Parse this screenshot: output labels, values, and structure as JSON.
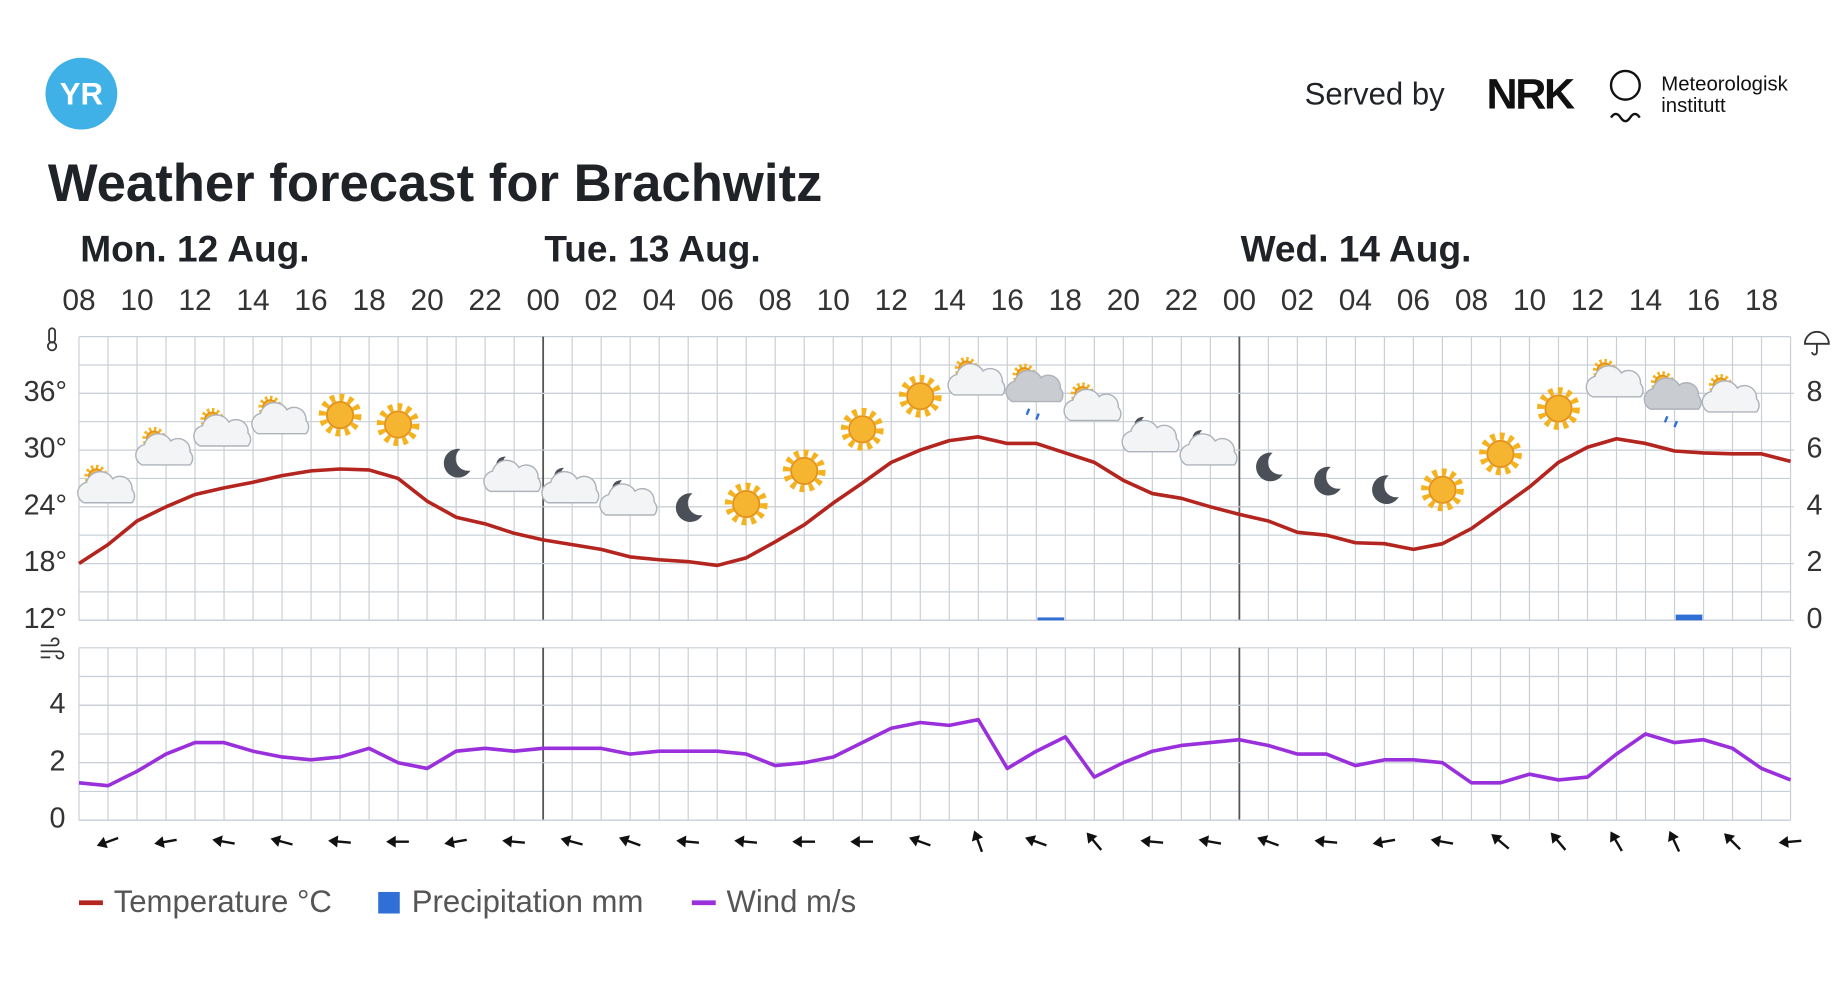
{
  "header": {
    "logo": "YR",
    "served_by": "Served by",
    "partner": "NRK",
    "institute": [
      "Meteorologisk",
      "institutt"
    ]
  },
  "chart_data": {
    "type": "line",
    "title": "Weather forecast for Brachwitz",
    "days": [
      "Mon. 12 Aug.",
      "Tue. 13 Aug.",
      "Wed. 14 Aug."
    ],
    "hour_labels": [
      "08",
      "10",
      "12",
      "14",
      "16",
      "18",
      "20",
      "22",
      "00",
      "02",
      "04",
      "06",
      "08",
      "10",
      "12",
      "14",
      "16",
      "18",
      "20",
      "22",
      "00",
      "02",
      "04",
      "06",
      "08",
      "10",
      "12",
      "14",
      "16",
      "18"
    ],
    "series": [
      {
        "name": "Temperature °C",
        "color": "#b3251e",
        "values": [
          18,
          20,
          22.5,
          24,
          25.3,
          26,
          26.6,
          27.3,
          27.8,
          28,
          27.9,
          27,
          24.6,
          22.9,
          22.2,
          21.2,
          20.5,
          20,
          19.5,
          18.7,
          18.4,
          18.2,
          17.8,
          18.6,
          20.3,
          22.1,
          24.4,
          26.5,
          28.7,
          30,
          31,
          31.4,
          30.7,
          30.7,
          29.7,
          28.7,
          26.8,
          25.4,
          24.9,
          24,
          23.2,
          22.5,
          21.3,
          21,
          20.2,
          20.1,
          19.5,
          20.1,
          21.7,
          23.9,
          26.1,
          28.7,
          30.3,
          31.2,
          30.7,
          29.9,
          29.7,
          29.6,
          29.6,
          28.8
        ]
      },
      {
        "name": "Precipitation mm",
        "type": "bar",
        "axis": "y2",
        "color": "#2f6fd6",
        "values": [
          0,
          0,
          0,
          0,
          0,
          0,
          0,
          0,
          0,
          0,
          0,
          0,
          0,
          0,
          0,
          0,
          0,
          0,
          0,
          0,
          0,
          0,
          0,
          0,
          0,
          0,
          0,
          0,
          0,
          0,
          0,
          0,
          0,
          0.1,
          0,
          0,
          0,
          0,
          0,
          0,
          0,
          0,
          0,
          0,
          0,
          0,
          0,
          0,
          0,
          0,
          0,
          0,
          0,
          0,
          0,
          0.2,
          0,
          0,
          0,
          0
        ]
      },
      {
        "name": "Wind m/s",
        "color": "#9a2fdc",
        "values": [
          1.3,
          1.2,
          1.7,
          2.3,
          2.7,
          2.7,
          2.4,
          2.2,
          2.1,
          2.2,
          2.5,
          2,
          1.8,
          2.4,
          2.5,
          2.4,
          2.5,
          2.5,
          2.5,
          2.3,
          2.4,
          2.4,
          2.4,
          2.3,
          1.9,
          2,
          2.2,
          2.7,
          3.2,
          3.4,
          3.3,
          3.5,
          1.8,
          2.4,
          2.9,
          1.5,
          2,
          2.4,
          2.6,
          2.7,
          2.8,
          2.6,
          2.3,
          2.3,
          1.9,
          2.1,
          2.1,
          2,
          1.3,
          1.3,
          1.6,
          1.4,
          1.5,
          2.3,
          3,
          2.7,
          2.8,
          2.5,
          1.8,
          1.4
        ]
      }
    ],
    "ylim": [
      12,
      42
    ],
    "yticks": [
      {
        "value": 12,
        "label": "12°"
      },
      {
        "value": 18,
        "label": "18°"
      },
      {
        "value": 24,
        "label": "24°"
      },
      {
        "value": 30,
        "label": "30°"
      },
      {
        "value": 36,
        "label": "36°"
      }
    ],
    "y2lim": [
      0,
      10
    ],
    "y2ticks": [
      0,
      2,
      4,
      6,
      8
    ],
    "wind_ylim": [
      0,
      6
    ],
    "wind_yticks": [
      0,
      2,
      4
    ],
    "wind_direction": [
      70,
      80,
      100,
      105,
      95,
      90,
      80,
      95,
      105,
      110,
      95,
      95,
      90,
      90,
      110,
      160,
      110,
      140,
      95,
      100,
      110,
      95,
      80,
      100,
      130,
      140,
      150,
      155,
      135,
      85
    ],
    "weather_symbols": [
      "partlycloudy_day",
      "partlycloudy_day",
      "partlycloudy_day",
      "partlycloudy_day",
      "clearsky_day",
      "clearsky_day",
      "clearsky_night",
      "partlycloudy_night",
      "partlycloudy_night",
      "partlycloudy_night",
      "clearsky_night",
      "clearsky_day",
      "clearsky_day",
      "clearsky_day",
      "clearsky_day",
      "partlycloudy_day",
      "lightrainshowers_day",
      "partlycloudy_day",
      "partlycloudy_night",
      "partlycloudy_night",
      "clearsky_night",
      "clearsky_night",
      "clearsky_night",
      "clearsky_day",
      "clearsky_day",
      "clearsky_day",
      "partlycloudy_day",
      "lightrainshowers_day",
      "partlycloudy_day"
    ],
    "grid": true
  }
}
